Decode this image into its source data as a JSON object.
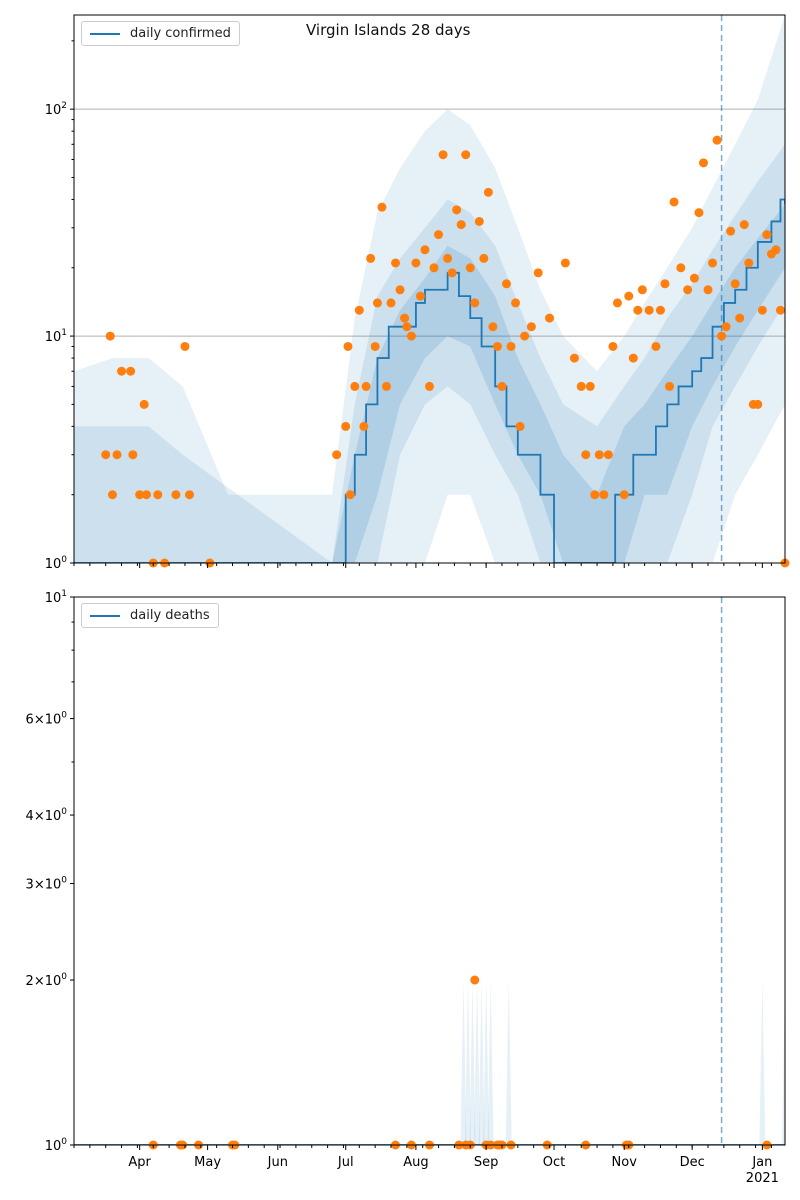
{
  "figure": {
    "title": "Virgin Islands 28 days",
    "x_tick_labels": [
      "Apr",
      "May",
      "Jun",
      "Jul",
      "Aug",
      "Sep",
      "Oct",
      "Nov",
      "Dec",
      "Jan"
    ],
    "x_year_label": "2021"
  },
  "colors": {
    "line": "#1f77b4",
    "points": "#ff7f0e",
    "band": "#1f77b4",
    "grid": "#b0b0b0",
    "forecast_line": "#1f77b4"
  },
  "chart_data": [
    {
      "type": "line",
      "title": "Virgin Islands 28 days",
      "legend": [
        "daily confirmed"
      ],
      "legend_position": "top-left",
      "y_scale": "log",
      "ylim": [
        1,
        260
      ],
      "y_tick_labels": [
        "10^0",
        "10^1",
        "10^2"
      ],
      "grid": "horizontal at 10 and 100",
      "forecast_start": "2020-12-14",
      "xlim": [
        "2020-03-03",
        "2021-01-11"
      ],
      "series": [
        {
          "name": "daily confirmed",
          "kind": "median line",
          "x": [
            "2020-03-03",
            "2020-06-25",
            "2020-06-30",
            "2020-07-01",
            "2020-07-05",
            "2020-07-10",
            "2020-07-15",
            "2020-07-20",
            "2020-07-25",
            "2020-08-01",
            "2020-08-05",
            "2020-08-10",
            "2020-08-15",
            "2020-08-20",
            "2020-08-25",
            "2020-08-30",
            "2020-09-05",
            "2020-09-10",
            "2020-09-15",
            "2020-09-20",
            "2020-09-25",
            "2020-09-30",
            "2020-10-01",
            "2020-10-25",
            "2020-10-28",
            "2020-11-01",
            "2020-11-05",
            "2020-11-10",
            "2020-11-15",
            "2020-11-20",
            "2020-11-25",
            "2020-12-01",
            "2020-12-05",
            "2020-12-10",
            "2020-12-15",
            "2020-12-20",
            "2020-12-25",
            "2020-12-30",
            "2021-01-05",
            "2021-01-09",
            "2021-01-11"
          ],
          "y": [
            1,
            1,
            1,
            2,
            3,
            5,
            8,
            11,
            11,
            14,
            16,
            16,
            19,
            15,
            12,
            9,
            6,
            4,
            3,
            3,
            2,
            2,
            1,
            1,
            2,
            2,
            3,
            3,
            4,
            5,
            6,
            7,
            8,
            11,
            14,
            16,
            20,
            26,
            32,
            40,
            38
          ]
        },
        {
          "name": "",
          "kind": "inner band",
          "x": [
            "2020-06-25",
            "2020-07-05",
            "2020-07-15",
            "2020-07-25",
            "2020-08-05",
            "2020-08-15",
            "2020-08-25",
            "2020-09-05",
            "2020-09-15",
            "2020-09-25",
            "2020-10-05",
            "2020-10-20",
            "2020-11-01",
            "2020-11-10",
            "2020-11-20",
            "2020-12-01",
            "2020-12-10",
            "2020-12-20",
            "2020-12-30",
            "2021-01-11"
          ],
          "lower": [
            1,
            1,
            2,
            5,
            8,
            10,
            9,
            5,
            3,
            2,
            1,
            1,
            1,
            2,
            2,
            4,
            6,
            9,
            13,
            20
          ],
          "upper": [
            1,
            3,
            8,
            13,
            18,
            25,
            22,
            15,
            8,
            5,
            3,
            2,
            4,
            5,
            7,
            10,
            14,
            20,
            27,
            38
          ]
        },
        {
          "name": "",
          "kind": "middle band",
          "x": [
            "2020-03-03",
            "2020-03-20",
            "2020-04-05",
            "2020-04-20",
            "2020-06-25",
            "2020-07-05",
            "2020-07-15",
            "2020-07-25",
            "2020-08-05",
            "2020-08-15",
            "2020-08-25",
            "2020-09-05",
            "2020-09-15",
            "2020-09-25",
            "2020-10-05",
            "2020-10-20",
            "2020-11-01",
            "2020-11-10",
            "2020-11-20",
            "2020-12-01",
            "2020-12-10",
            "2020-12-20",
            "2020-12-30",
            "2021-01-11"
          ],
          "lower": [
            1,
            1,
            1,
            1,
            1,
            1,
            1,
            3,
            5,
            6,
            5,
            3,
            2,
            1,
            1,
            1,
            1,
            1,
            1,
            2,
            4,
            6,
            9,
            14
          ],
          "upper": [
            4,
            4,
            4,
            3,
            1,
            5,
            15,
            22,
            30,
            40,
            35,
            25,
            14,
            8,
            5,
            4,
            6,
            8,
            12,
            17,
            24,
            34,
            48,
            70
          ]
        },
        {
          "name": "",
          "kind": "outer band",
          "x": [
            "2020-03-03",
            "2020-03-20",
            "2020-04-05",
            "2020-04-20",
            "2020-05-10",
            "2020-06-25",
            "2020-07-05",
            "2020-07-15",
            "2020-07-25",
            "2020-08-05",
            "2020-08-15",
            "2020-08-25",
            "2020-09-05",
            "2020-09-15",
            "2020-09-25",
            "2020-10-05",
            "2020-10-20",
            "2020-11-01",
            "2020-11-10",
            "2020-11-20",
            "2020-12-01",
            "2020-12-10",
            "2020-12-20",
            "2020-12-30",
            "2021-01-11"
          ],
          "lower": [
            1,
            1,
            1,
            1,
            1,
            1,
            1,
            1,
            1,
            1,
            2,
            2,
            1,
            1,
            1,
            1,
            1,
            1,
            1,
            1,
            1,
            1,
            2,
            3,
            5
          ],
          "upper": [
            7,
            8,
            8,
            6,
            2,
            2,
            12,
            35,
            55,
            80,
            100,
            85,
            55,
            30,
            16,
            10,
            7,
            10,
            14,
            20,
            30,
            45,
            70,
            110,
            260
          ]
        },
        {
          "name": "",
          "kind": "observed points",
          "x": [
            "2020-03-17",
            "2020-03-19",
            "2020-03-20",
            "2020-03-22",
            "2020-03-24",
            "2020-03-28",
            "2020-03-29",
            "2020-04-01",
            "2020-04-03",
            "2020-04-04",
            "2020-04-07",
            "2020-04-09",
            "2020-04-12",
            "2020-04-17",
            "2020-04-21",
            "2020-04-23",
            "2020-05-02",
            "2020-06-27",
            "2020-07-01",
            "2020-07-02",
            "2020-07-03",
            "2020-07-05",
            "2020-07-07",
            "2020-07-09",
            "2020-07-10",
            "2020-07-12",
            "2020-07-14",
            "2020-07-15",
            "2020-07-17",
            "2020-07-19",
            "2020-07-21",
            "2020-07-23",
            "2020-07-25",
            "2020-07-27",
            "2020-07-28",
            "2020-07-30",
            "2020-08-01",
            "2020-08-03",
            "2020-08-05",
            "2020-08-07",
            "2020-08-09",
            "2020-08-11",
            "2020-08-13",
            "2020-08-15",
            "2020-08-17",
            "2020-08-19",
            "2020-08-21",
            "2020-08-23",
            "2020-08-25",
            "2020-08-27",
            "2020-08-29",
            "2020-08-31",
            "2020-09-02",
            "2020-09-04",
            "2020-09-06",
            "2020-09-08",
            "2020-09-10",
            "2020-09-12",
            "2020-09-14",
            "2020-09-16",
            "2020-09-18",
            "2020-09-21",
            "2020-09-24",
            "2020-09-29",
            "2020-10-06",
            "2020-10-10",
            "2020-10-13",
            "2020-10-15",
            "2020-10-17",
            "2020-10-19",
            "2020-10-21",
            "2020-10-23",
            "2020-10-25",
            "2020-10-27",
            "2020-10-29",
            "2020-11-01",
            "2020-11-03",
            "2020-11-05",
            "2020-11-07",
            "2020-11-09",
            "2020-11-12",
            "2020-11-15",
            "2020-11-17",
            "2020-11-19",
            "2020-11-21",
            "2020-11-23",
            "2020-11-26",
            "2020-11-29",
            "2020-12-02",
            "2020-12-04",
            "2020-12-06",
            "2020-12-08",
            "2020-12-10",
            "2020-12-12",
            "2020-12-14",
            "2020-12-16",
            "2020-12-18",
            "2020-12-20",
            "2020-12-22",
            "2020-12-24",
            "2020-12-26",
            "2020-12-28",
            "2020-12-30",
            "2021-01-01",
            "2021-01-03",
            "2021-01-05",
            "2021-01-07",
            "2021-01-09",
            "2021-01-11"
          ],
          "y": [
            3,
            10,
            2,
            3,
            7,
            7,
            3,
            2,
            5,
            2,
            1,
            2,
            1,
            2,
            9,
            2,
            1,
            3,
            4,
            9,
            2,
            6,
            13,
            4,
            6,
            22,
            9,
            14,
            37,
            6,
            14,
            21,
            16,
            12,
            11,
            10,
            21,
            15,
            24,
            6,
            20,
            28,
            63,
            22,
            19,
            36,
            31,
            63,
            20,
            14,
            32,
            22,
            43,
            11,
            9,
            6,
            17,
            9,
            14,
            4,
            10,
            11,
            19,
            12,
            21,
            8,
            6,
            3,
            6,
            2,
            3,
            2,
            3,
            9,
            14,
            2,
            15,
            8,
            13,
            16,
            13,
            9,
            13,
            17,
            6,
            39,
            20,
            16,
            18,
            35,
            58,
            16,
            21,
            73,
            10,
            11,
            29,
            17,
            12,
            31,
            21,
            5,
            5,
            13,
            28,
            23,
            24,
            13,
            1
          ]
        }
      ]
    },
    {
      "type": "line",
      "title": "",
      "legend": [
        "daily deaths"
      ],
      "legend_position": "top-left",
      "y_scale": "log",
      "ylim": [
        1,
        10
      ],
      "y_tick_labels": [
        "10^0",
        "2×10^0",
        "3×10^0",
        "4×10^0",
        "6×10^0",
        "10^1"
      ],
      "forecast_start": "2020-12-14",
      "xlim": [
        "2020-03-03",
        "2021-01-11"
      ],
      "series": [
        {
          "name": "daily deaths",
          "kind": "median line",
          "x": [
            "2020-03-03",
            "2021-01-11"
          ],
          "y": [
            1,
            1
          ]
        },
        {
          "name": "",
          "kind": "band spikes",
          "x": [
            "2020-08-22",
            "2020-08-24",
            "2020-08-26",
            "2020-08-28",
            "2020-08-30",
            "2020-09-01",
            "2020-09-03",
            "2020-09-11",
            "2021-01-01",
            "2021-01-11"
          ],
          "upper": [
            2,
            2,
            2,
            2,
            2,
            2,
            2,
            2,
            2,
            2
          ]
        },
        {
          "name": "",
          "kind": "observed points",
          "x": [
            "2020-04-07",
            "2020-04-19",
            "2020-04-20",
            "2020-04-27",
            "2020-05-12",
            "2020-05-13",
            "2020-07-23",
            "2020-07-30",
            "2020-08-07",
            "2020-08-20",
            "2020-08-23",
            "2020-08-25",
            "2020-08-27",
            "2020-09-01",
            "2020-09-03",
            "2020-09-06",
            "2020-09-07",
            "2020-09-08",
            "2020-09-12",
            "2020-09-28",
            "2020-10-15",
            "2020-11-02",
            "2020-11-03",
            "2021-01-03"
          ],
          "y": [
            1,
            1,
            1,
            1,
            1,
            1,
            1,
            1,
            1,
            1,
            1,
            1,
            2,
            1,
            1,
            1,
            1,
            1,
            1,
            1,
            1,
            1,
            1,
            1
          ]
        }
      ]
    }
  ]
}
